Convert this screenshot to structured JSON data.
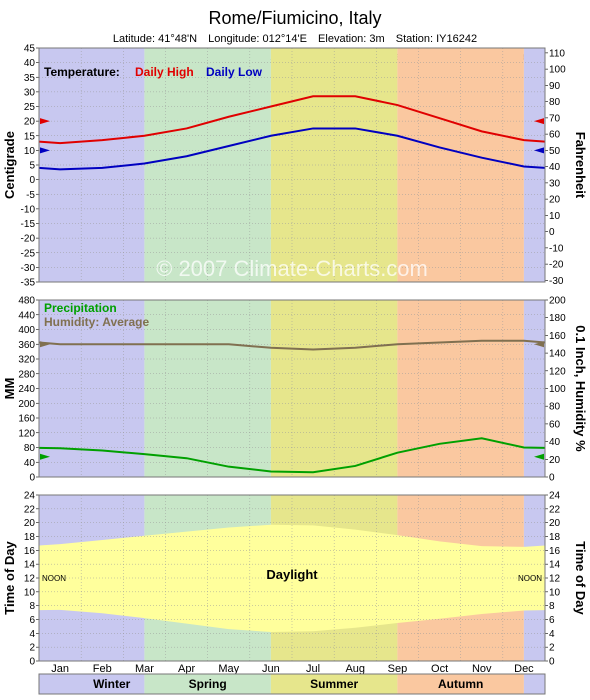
{
  "page": {
    "location": "Rome/Fiumicino,  Italy",
    "latitude": "Latitude: 41°48'N",
    "longitude": "Longitude: 012°14'E",
    "elevation": "Elevation: 3m",
    "station": "Station: IY16242",
    "watermark": "© 2007 Climate-Charts.com"
  },
  "colors": {
    "winter": "#c8c8f0",
    "spring": "#c8e6c8",
    "summer": "#e6e68c",
    "autumn": "#fac8a0",
    "daylight": "#ffff9c",
    "high": "#e00000",
    "low": "#0000c0",
    "precip": "#00a000",
    "humidity": "#807050"
  },
  "seasons": [
    "Winter",
    "Spring",
    "Summer",
    "Autumn"
  ],
  "chart_data": [
    {
      "type": "line",
      "title": "Temperature:",
      "ylabel": "Centigrade",
      "ylabel_right": "Fahrenheit",
      "categories": [
        "Jan",
        "Feb",
        "Mar",
        "Apr",
        "May",
        "Jun",
        "Jul",
        "Aug",
        "Sep",
        "Oct",
        "Nov",
        "Dec"
      ],
      "series": [
        {
          "name": "Daily High",
          "values": [
            12.5,
            13.5,
            15.0,
            17.5,
            21.5,
            25.0,
            28.5,
            28.5,
            25.5,
            21.0,
            16.5,
            13.5
          ]
        },
        {
          "name": "Daily Low",
          "values": [
            3.5,
            4.0,
            5.5,
            8.0,
            11.5,
            15.0,
            17.5,
            17.5,
            15.0,
            11.0,
            7.5,
            4.5
          ]
        }
      ],
      "ylim": [
        -35,
        45
      ],
      "yticks": [
        45,
        40,
        35,
        30,
        25,
        20,
        15,
        10,
        5,
        0,
        -5,
        -10,
        -15,
        -20,
        -25,
        -30,
        -35
      ],
      "yticks_right": [
        110,
        100,
        90,
        80,
        70,
        60,
        50,
        40,
        30,
        20,
        10,
        0,
        -10,
        -20,
        -30
      ],
      "grid": true
    },
    {
      "type": "line",
      "ylabel": "MM",
      "ylabel_right": "0.1 Inch, Humidity %",
      "categories": [
        "Jan",
        "Feb",
        "Mar",
        "Apr",
        "May",
        "Jun",
        "Jul",
        "Aug",
        "Sep",
        "Oct",
        "Nov",
        "Dec"
      ],
      "series": [
        {
          "name": "Precipitation",
          "values": [
            78,
            72,
            62,
            51,
            28,
            15,
            13,
            30,
            66,
            90,
            105,
            80
          ]
        },
        {
          "name": "Humidity: Average",
          "values": [
            75,
            75,
            75,
            75,
            75,
            73,
            72,
            73,
            75,
            76,
            77,
            77
          ]
        }
      ],
      "ylim": [
        0,
        480
      ],
      "yticks": [
        480,
        440,
        400,
        360,
        320,
        280,
        240,
        200,
        160,
        120,
        80,
        40,
        0
      ],
      "yticks_right": [
        200,
        180,
        160,
        140,
        120,
        100,
        80,
        60,
        40,
        20,
        0
      ],
      "grid": true
    },
    {
      "type": "area",
      "title": "Daylight",
      "ylabel": "Time of Day",
      "ylabel_right": "Time of Day",
      "categories": [
        "Jan",
        "Feb",
        "Mar",
        "Apr",
        "May",
        "Jun",
        "Jul",
        "Aug",
        "Sep",
        "Oct",
        "Nov",
        "Dec"
      ],
      "series": [
        {
          "name": "Sunrise",
          "values": [
            7.4,
            6.9,
            6.2,
            5.4,
            4.6,
            4.2,
            4.3,
            4.8,
            5.5,
            6.1,
            6.8,
            7.3
          ]
        },
        {
          "name": "Sunset",
          "values": [
            16.9,
            17.5,
            18.1,
            18.7,
            19.3,
            19.7,
            19.6,
            19.0,
            18.2,
            17.3,
            16.6,
            16.5
          ]
        }
      ],
      "noon_label": "NOON",
      "ylim": [
        0,
        24
      ],
      "yticks": [
        24,
        22,
        20,
        18,
        16,
        14,
        12,
        10,
        8,
        6,
        4,
        2,
        0
      ],
      "grid": true
    }
  ]
}
